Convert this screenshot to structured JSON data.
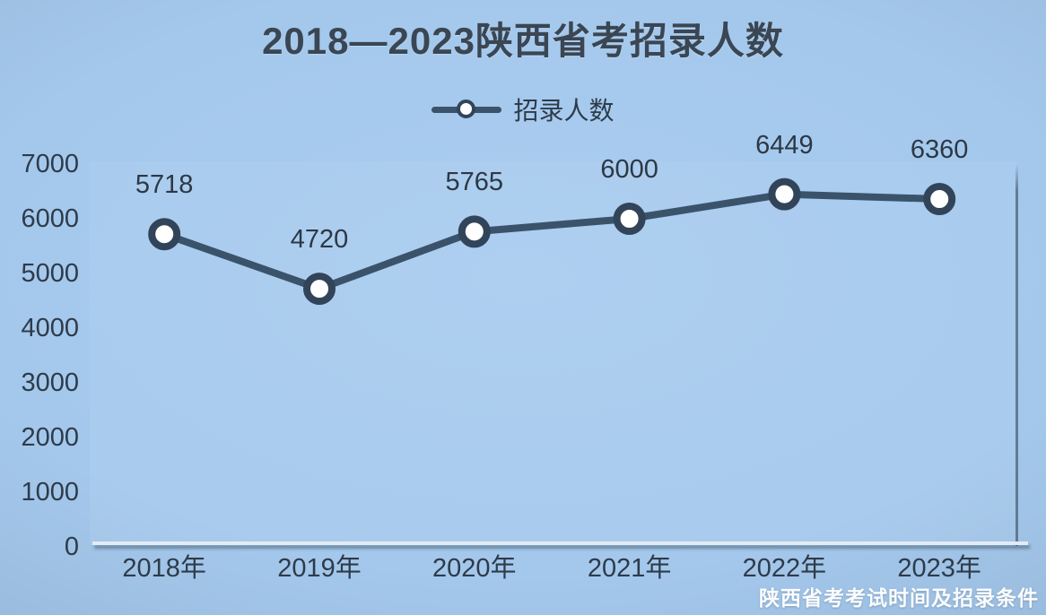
{
  "page": {
    "watermark": "陕西省考考试时间及招录条件"
  },
  "chart_data": {
    "type": "line",
    "title": "2018—2023陕西省考招录人数",
    "legend": [
      {
        "name": "招录人数",
        "marker": "circle-on-line"
      }
    ],
    "legend_position": "top-center",
    "categories": [
      "2018年",
      "2019年",
      "2020年",
      "2021年",
      "2022年",
      "2023年"
    ],
    "series": [
      {
        "name": "招录人数",
        "values": [
          5718,
          4720,
          5765,
          6000,
          6449,
          6360
        ]
      }
    ],
    "data_labels": [
      "5718",
      "4720",
      "5765",
      "6000",
      "6449",
      "6360"
    ],
    "xlabel": "",
    "ylabel": "",
    "ylim": [
      0,
      7000
    ],
    "yticks": [
      0,
      1000,
      2000,
      3000,
      4000,
      5000,
      6000,
      7000
    ],
    "grid": false,
    "colors": {
      "background": "#a5c9ec",
      "line": "#3a536b",
      "marker_ring": "#324459",
      "marker_fill": "#ffffff",
      "text": "#2e3b4a",
      "title": "#3a4653",
      "watermark_text": "#ffffff"
    }
  }
}
